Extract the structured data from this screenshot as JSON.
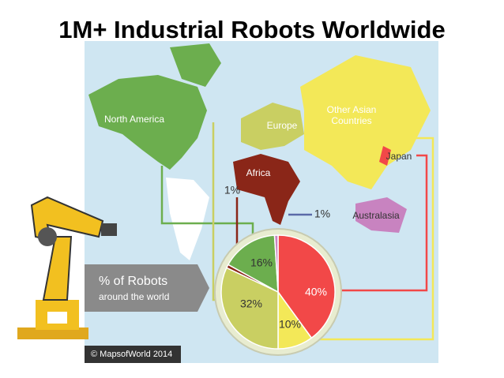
{
  "chart_data": {
    "type": "pie",
    "title": "1M+ Industrial Robots Worldwide",
    "subtitle": "% of Robots",
    "caption": "around the world",
    "credit": "© MapsofWorld 2014",
    "categories": [
      "Japan",
      "Other Asian Countries",
      "Europe",
      "Africa",
      "North America",
      "Australasia"
    ],
    "values": [
      40,
      10,
      32,
      1,
      16,
      1
    ],
    "value_labels": [
      "40%",
      "10%",
      "32%",
      "1%",
      "16%",
      "1%"
    ],
    "colors": [
      "#f24848",
      "#f3e858",
      "#c9cf62",
      "#8a2618",
      "#6cae4e",
      "#c883c0"
    ]
  }
}
